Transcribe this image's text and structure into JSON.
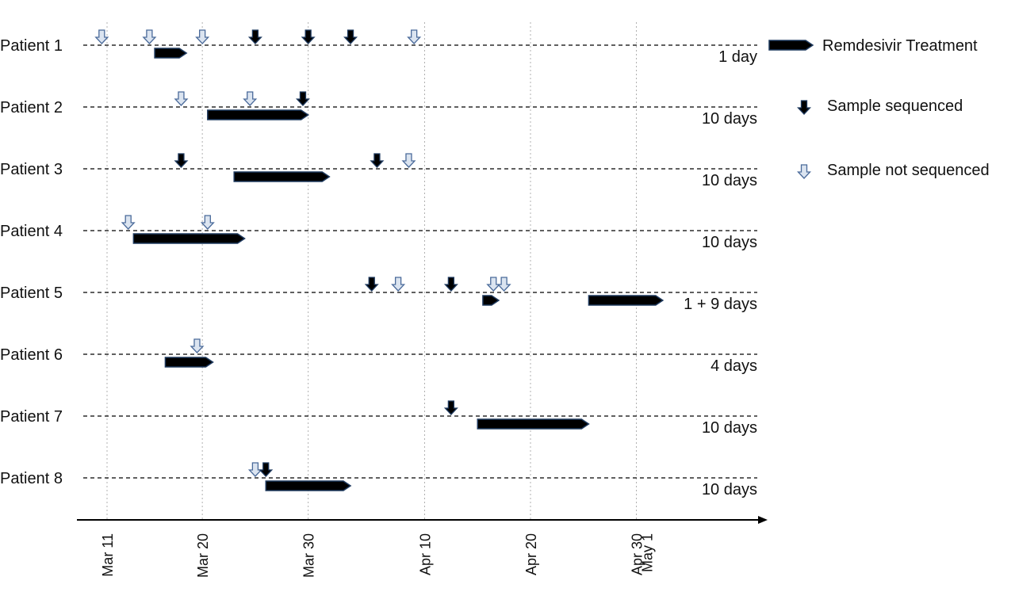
{
  "chart_data": {
    "type": "timeline",
    "x_axis": {
      "ticks": [
        {
          "label": "Mar 11",
          "day": 0
        },
        {
          "label": "Mar 20",
          "day": 9
        },
        {
          "label": "Mar 30",
          "day": 19
        },
        {
          "label": "Apr 10",
          "day": 30
        },
        {
          "label": "Apr 20",
          "day": 40
        },
        {
          "label": "Apr 30",
          "day": 50
        },
        {
          "label": "May 1",
          "day": 51
        }
      ],
      "grid": true
    },
    "patients": [
      {
        "label": "Patient 1",
        "duration": "1 day",
        "treatments": [
          {
            "start": 4.5,
            "end": 7.5
          }
        ],
        "sequenced": [
          14,
          19,
          23
        ],
        "not_sequenced": [
          -0.5,
          4,
          9,
          29
        ]
      },
      {
        "label": "Patient 2",
        "duration": "10 days",
        "treatments": [
          {
            "start": 9.5,
            "end": 19
          }
        ],
        "sequenced": [
          18.5
        ],
        "not_sequenced": [
          7,
          13.5
        ]
      },
      {
        "label": "Patient 3",
        "duration": "10 days",
        "treatments": [
          {
            "start": 12,
            "end": 21
          }
        ],
        "sequenced": [
          7,
          25.5
        ],
        "not_sequenced": [
          28.5
        ]
      },
      {
        "label": "Patient 4",
        "duration": "10 days",
        "treatments": [
          {
            "start": 2.5,
            "end": 13
          }
        ],
        "sequenced": [],
        "not_sequenced": [
          2,
          9.5
        ]
      },
      {
        "label": "Patient 5",
        "duration": "1 + 9 days",
        "treatments": [
          {
            "start": 35.5,
            "end": 37
          },
          {
            "start": 45.5,
            "end": 52.5
          }
        ],
        "sequenced": [
          25,
          32.5
        ],
        "not_sequenced": [
          27.5,
          36.5,
          37.5
        ]
      },
      {
        "label": "Patient 6",
        "duration": "4 days",
        "treatments": [
          {
            "start": 5.5,
            "end": 10
          }
        ],
        "sequenced": [],
        "not_sequenced": [
          8.5
        ]
      },
      {
        "label": "Patient 7",
        "duration": "10 days",
        "treatments": [
          {
            "start": 35,
            "end": 45.5
          }
        ],
        "sequenced": [
          32.5
        ],
        "not_sequenced": []
      },
      {
        "label": "Patient 8",
        "duration": "10 days",
        "treatments": [
          {
            "start": 15,
            "end": 23
          }
        ],
        "sequenced": [
          15
        ],
        "not_sequenced": [
          14
        ]
      }
    ],
    "legend": {
      "placement": "top-right",
      "items": [
        {
          "key": "treatment",
          "label": "Remdesivir Treatment"
        },
        {
          "key": "sequenced",
          "label": "Sample sequenced"
        },
        {
          "key": "not_sequenced",
          "label": "Sample not sequenced"
        }
      ]
    },
    "colors": {
      "treatment_fill": "#000000",
      "treatment_stroke": "#1f3a5f",
      "sequenced_fill": "#000000",
      "not_sequenced_fill": "#dbe4f0",
      "not_sequenced_stroke": "#4a6a9a",
      "grid": "#b0b0b0",
      "baseline": "#000000"
    }
  }
}
